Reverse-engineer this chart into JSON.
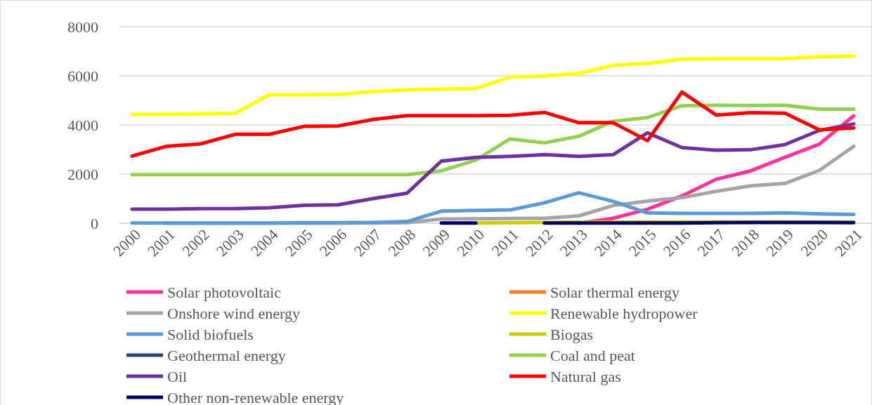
{
  "chart_data": {
    "type": "line",
    "categories": [
      "2000",
      "2001",
      "2002",
      "2003",
      "2004",
      "2005",
      "2006",
      "2007",
      "2008",
      "2009",
      "2010",
      "2011",
      "2012",
      "2013",
      "2014",
      "2015",
      "2016",
      "2017",
      "2018",
      "2019",
      "2020",
      "2021"
    ],
    "ylim": [
      0,
      8000
    ],
    "yticks": [
      0,
      2000,
      4000,
      6000,
      8000
    ],
    "grid": "y",
    "legend": "bottom",
    "series": [
      {
        "name": "Solar photovoltaic",
        "color": "#ff3399",
        "values": [
          null,
          null,
          null,
          null,
          null,
          null,
          null,
          null,
          null,
          null,
          null,
          null,
          null,
          0,
          200,
          570,
          1110,
          1790,
          2130,
          2680,
          3220,
          4370
        ]
      },
      {
        "name": "Solar thermal energy",
        "color": "#ed7d31",
        "values": [
          null,
          null,
          null,
          null,
          null,
          null,
          null,
          null,
          null,
          null,
          null,
          null,
          null,
          null,
          null,
          null,
          null,
          null,
          null,
          null,
          null,
          null
        ]
      },
      {
        "name": "Onshore wind energy",
        "color": "#a5a5a5",
        "values": [
          null,
          0,
          0,
          0,
          0,
          0,
          0,
          10,
          20,
          170,
          180,
          190,
          200,
          300,
          720,
          900,
          1040,
          1300,
          1520,
          1620,
          2150,
          3130
        ]
      },
      {
        "name": "Renewable hydropower",
        "color": "#ffff00",
        "values": [
          4430,
          4430,
          4450,
          4470,
          5230,
          5230,
          5240,
          5360,
          5430,
          5460,
          5480,
          5950,
          5990,
          6090,
          6430,
          6500,
          6680,
          6690,
          6690,
          6690,
          6780,
          6800
        ]
      },
      {
        "name": "Solid biofuels",
        "color": "#5b9bd5",
        "values": [
          10,
          10,
          10,
          10,
          10,
          20,
          20,
          30,
          70,
          490,
          520,
          540,
          830,
          1240,
          890,
          420,
          400,
          400,
          400,
          420,
          380,
          360
        ]
      },
      {
        "name": "Biogas",
        "color": "#cccc00",
        "values": [
          null,
          null,
          null,
          null,
          null,
          null,
          null,
          null,
          null,
          null,
          10,
          20,
          30,
          40,
          40,
          50,
          50,
          50,
          50,
          50,
          50,
          50
        ]
      },
      {
        "name": "Geothermal energy",
        "color": "#264478",
        "values": [
          null,
          null,
          null,
          null,
          null,
          null,
          null,
          null,
          null,
          null,
          null,
          null,
          null,
          null,
          null,
          null,
          null,
          null,
          null,
          null,
          null,
          null
        ]
      },
      {
        "name": "Coal and peat",
        "color": "#92d050",
        "values": [
          1980,
          1980,
          1980,
          1980,
          1980,
          1980,
          1980,
          1980,
          1980,
          2130,
          2570,
          3430,
          3270,
          3540,
          4150,
          4300,
          4780,
          4800,
          4790,
          4800,
          4640,
          4640
        ]
      },
      {
        "name": "Oil",
        "color": "#7030a0",
        "values": [
          570,
          570,
          590,
          590,
          630,
          730,
          750,
          1000,
          1220,
          2530,
          2680,
          2720,
          2790,
          2720,
          2790,
          3680,
          3080,
          2970,
          2990,
          3200,
          3780,
          4040
        ]
      },
      {
        "name": "Natural gas",
        "color": "#ff0000",
        "values": [
          2730,
          3130,
          3230,
          3620,
          3620,
          3940,
          3960,
          4220,
          4380,
          4380,
          4380,
          4390,
          4510,
          4090,
          4090,
          3360,
          5340,
          4400,
          4500,
          4480,
          3800,
          3880
        ]
      },
      {
        "name": "Other non-renewable energy",
        "color": "#000066",
        "values": [
          null,
          null,
          null,
          null,
          null,
          null,
          null,
          null,
          null,
          10,
          10,
          null,
          10,
          10,
          10,
          10,
          10,
          20,
          30,
          30,
          30,
          20
        ]
      }
    ]
  }
}
